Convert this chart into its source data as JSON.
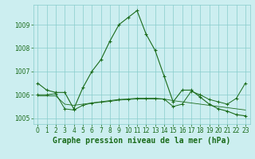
{
  "title": "Graphe pression niveau de la mer (hPa)",
  "background_color": "#cceef0",
  "grid_color": "#88cccc",
  "line_color": "#1a6b1a",
  "xlim": [
    -0.5,
    23.5
  ],
  "ylim": [
    1004.75,
    1009.85
  ],
  "yticks": [
    1005,
    1006,
    1007,
    1008,
    1009
  ],
  "xticks": [
    0,
    1,
    2,
    3,
    4,
    5,
    6,
    7,
    8,
    9,
    10,
    11,
    12,
    13,
    14,
    15,
    16,
    17,
    18,
    19,
    20,
    21,
    22,
    23
  ],
  "series1_y": [
    1006.5,
    1006.2,
    1006.1,
    1006.1,
    1005.4,
    1006.3,
    1007.0,
    1007.5,
    1008.3,
    1009.0,
    1009.3,
    1009.6,
    1008.6,
    1007.9,
    1006.8,
    1005.7,
    1006.2,
    1006.2,
    1005.9,
    1005.6,
    1005.4,
    1005.3,
    1005.15,
    1005.1
  ],
  "series2_y": [
    1006.0,
    1006.0,
    1006.05,
    1005.4,
    1005.35,
    1005.55,
    1005.65,
    1005.7,
    1005.75,
    1005.8,
    1005.82,
    1005.85,
    1005.85,
    1005.85,
    1005.82,
    1005.5,
    1005.6,
    1006.15,
    1006.0,
    1005.8,
    1005.7,
    1005.6,
    1005.85,
    1006.5
  ],
  "series3_y": [
    1005.95,
    1005.95,
    1005.95,
    1005.6,
    1005.55,
    1005.6,
    1005.65,
    1005.68,
    1005.72,
    1005.77,
    1005.8,
    1005.82,
    1005.82,
    1005.82,
    1005.82,
    1005.75,
    1005.7,
    1005.65,
    1005.6,
    1005.55,
    1005.5,
    1005.45,
    1005.4,
    1005.35
  ],
  "tick_fontsize": 5.5,
  "title_fontsize": 7.0,
  "title_color": "#1a6b1a"
}
